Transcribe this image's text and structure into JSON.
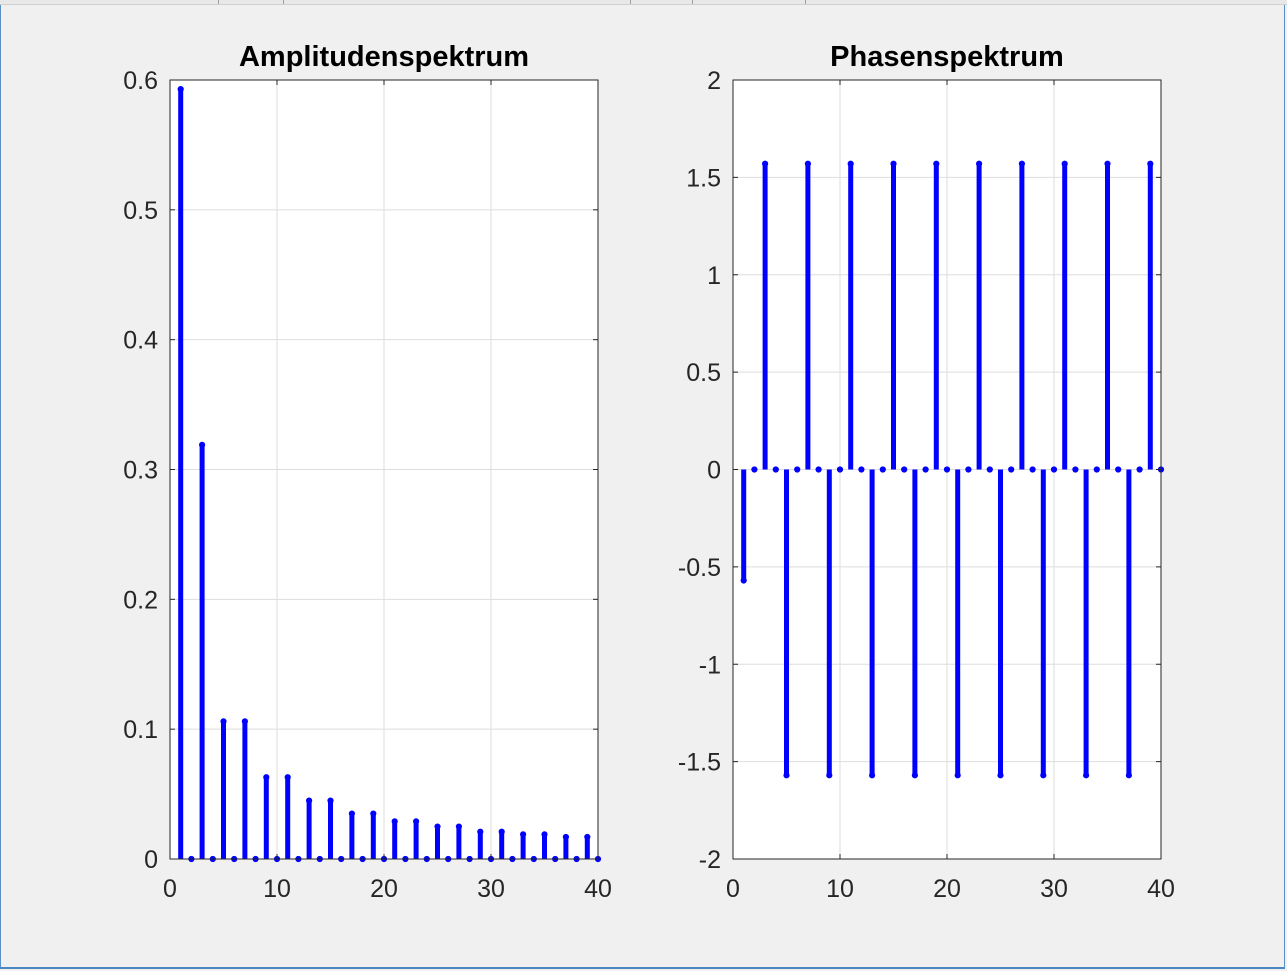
{
  "chart_data": [
    {
      "type": "stem",
      "title": "Amplitudenspektrum",
      "xlabel": "",
      "ylabel": "",
      "xlim": [
        0,
        40
      ],
      "ylim": [
        0,
        0.6
      ],
      "xticks": [
        "0",
        "10",
        "20",
        "30",
        "40"
      ],
      "yticks": [
        "0",
        "0.1",
        "0.2",
        "0.3",
        "0.4",
        "0.5",
        "0.6"
      ],
      "grid": true,
      "color": "#0000ff",
      "x": [
        1,
        2,
        3,
        4,
        5,
        6,
        7,
        8,
        9,
        10,
        11,
        12,
        13,
        14,
        15,
        16,
        17,
        18,
        19,
        20,
        21,
        22,
        23,
        24,
        25,
        26,
        27,
        28,
        29,
        30,
        31,
        32,
        33,
        34,
        35,
        36,
        37,
        38,
        39,
        40
      ],
      "y": [
        0.593,
        0,
        0.319,
        0,
        0.106,
        0,
        0.106,
        0,
        0.063,
        0,
        0.063,
        0,
        0.045,
        0,
        0.045,
        0,
        0.035,
        0,
        0.035,
        0,
        0.029,
        0,
        0.029,
        0,
        0.025,
        0,
        0.025,
        0,
        0.021,
        0,
        0.021,
        0,
        0.019,
        0,
        0.019,
        0,
        0.017,
        0,
        0.017,
        0
      ]
    },
    {
      "type": "stem",
      "title": "Phasenspektrum",
      "xlabel": "",
      "ylabel": "",
      "xlim": [
        0,
        40
      ],
      "ylim": [
        -2,
        2
      ],
      "xticks": [
        "0",
        "10",
        "20",
        "30",
        "40"
      ],
      "yticks": [
        "-2",
        "-1.5",
        "-1",
        "-0.5",
        "0",
        "0.5",
        "1",
        "1.5",
        "2"
      ],
      "grid": true,
      "color": "#0000ff",
      "x": [
        1,
        2,
        3,
        4,
        5,
        6,
        7,
        8,
        9,
        10,
        11,
        12,
        13,
        14,
        15,
        16,
        17,
        18,
        19,
        20,
        21,
        22,
        23,
        24,
        25,
        26,
        27,
        28,
        29,
        30,
        31,
        32,
        33,
        34,
        35,
        36,
        37,
        38,
        39,
        40
      ],
      "y": [
        -0.57,
        0,
        1.57,
        0,
        -1.57,
        0,
        1.57,
        0,
        -1.57,
        0,
        1.57,
        0,
        -1.57,
        0,
        1.57,
        0,
        -1.57,
        0,
        1.57,
        0,
        -1.57,
        0,
        1.57,
        0,
        -1.57,
        0,
        1.57,
        0,
        -1.57,
        0,
        1.57,
        0,
        -1.57,
        0,
        1.57,
        0,
        -1.57,
        0,
        1.57,
        0
      ]
    }
  ]
}
